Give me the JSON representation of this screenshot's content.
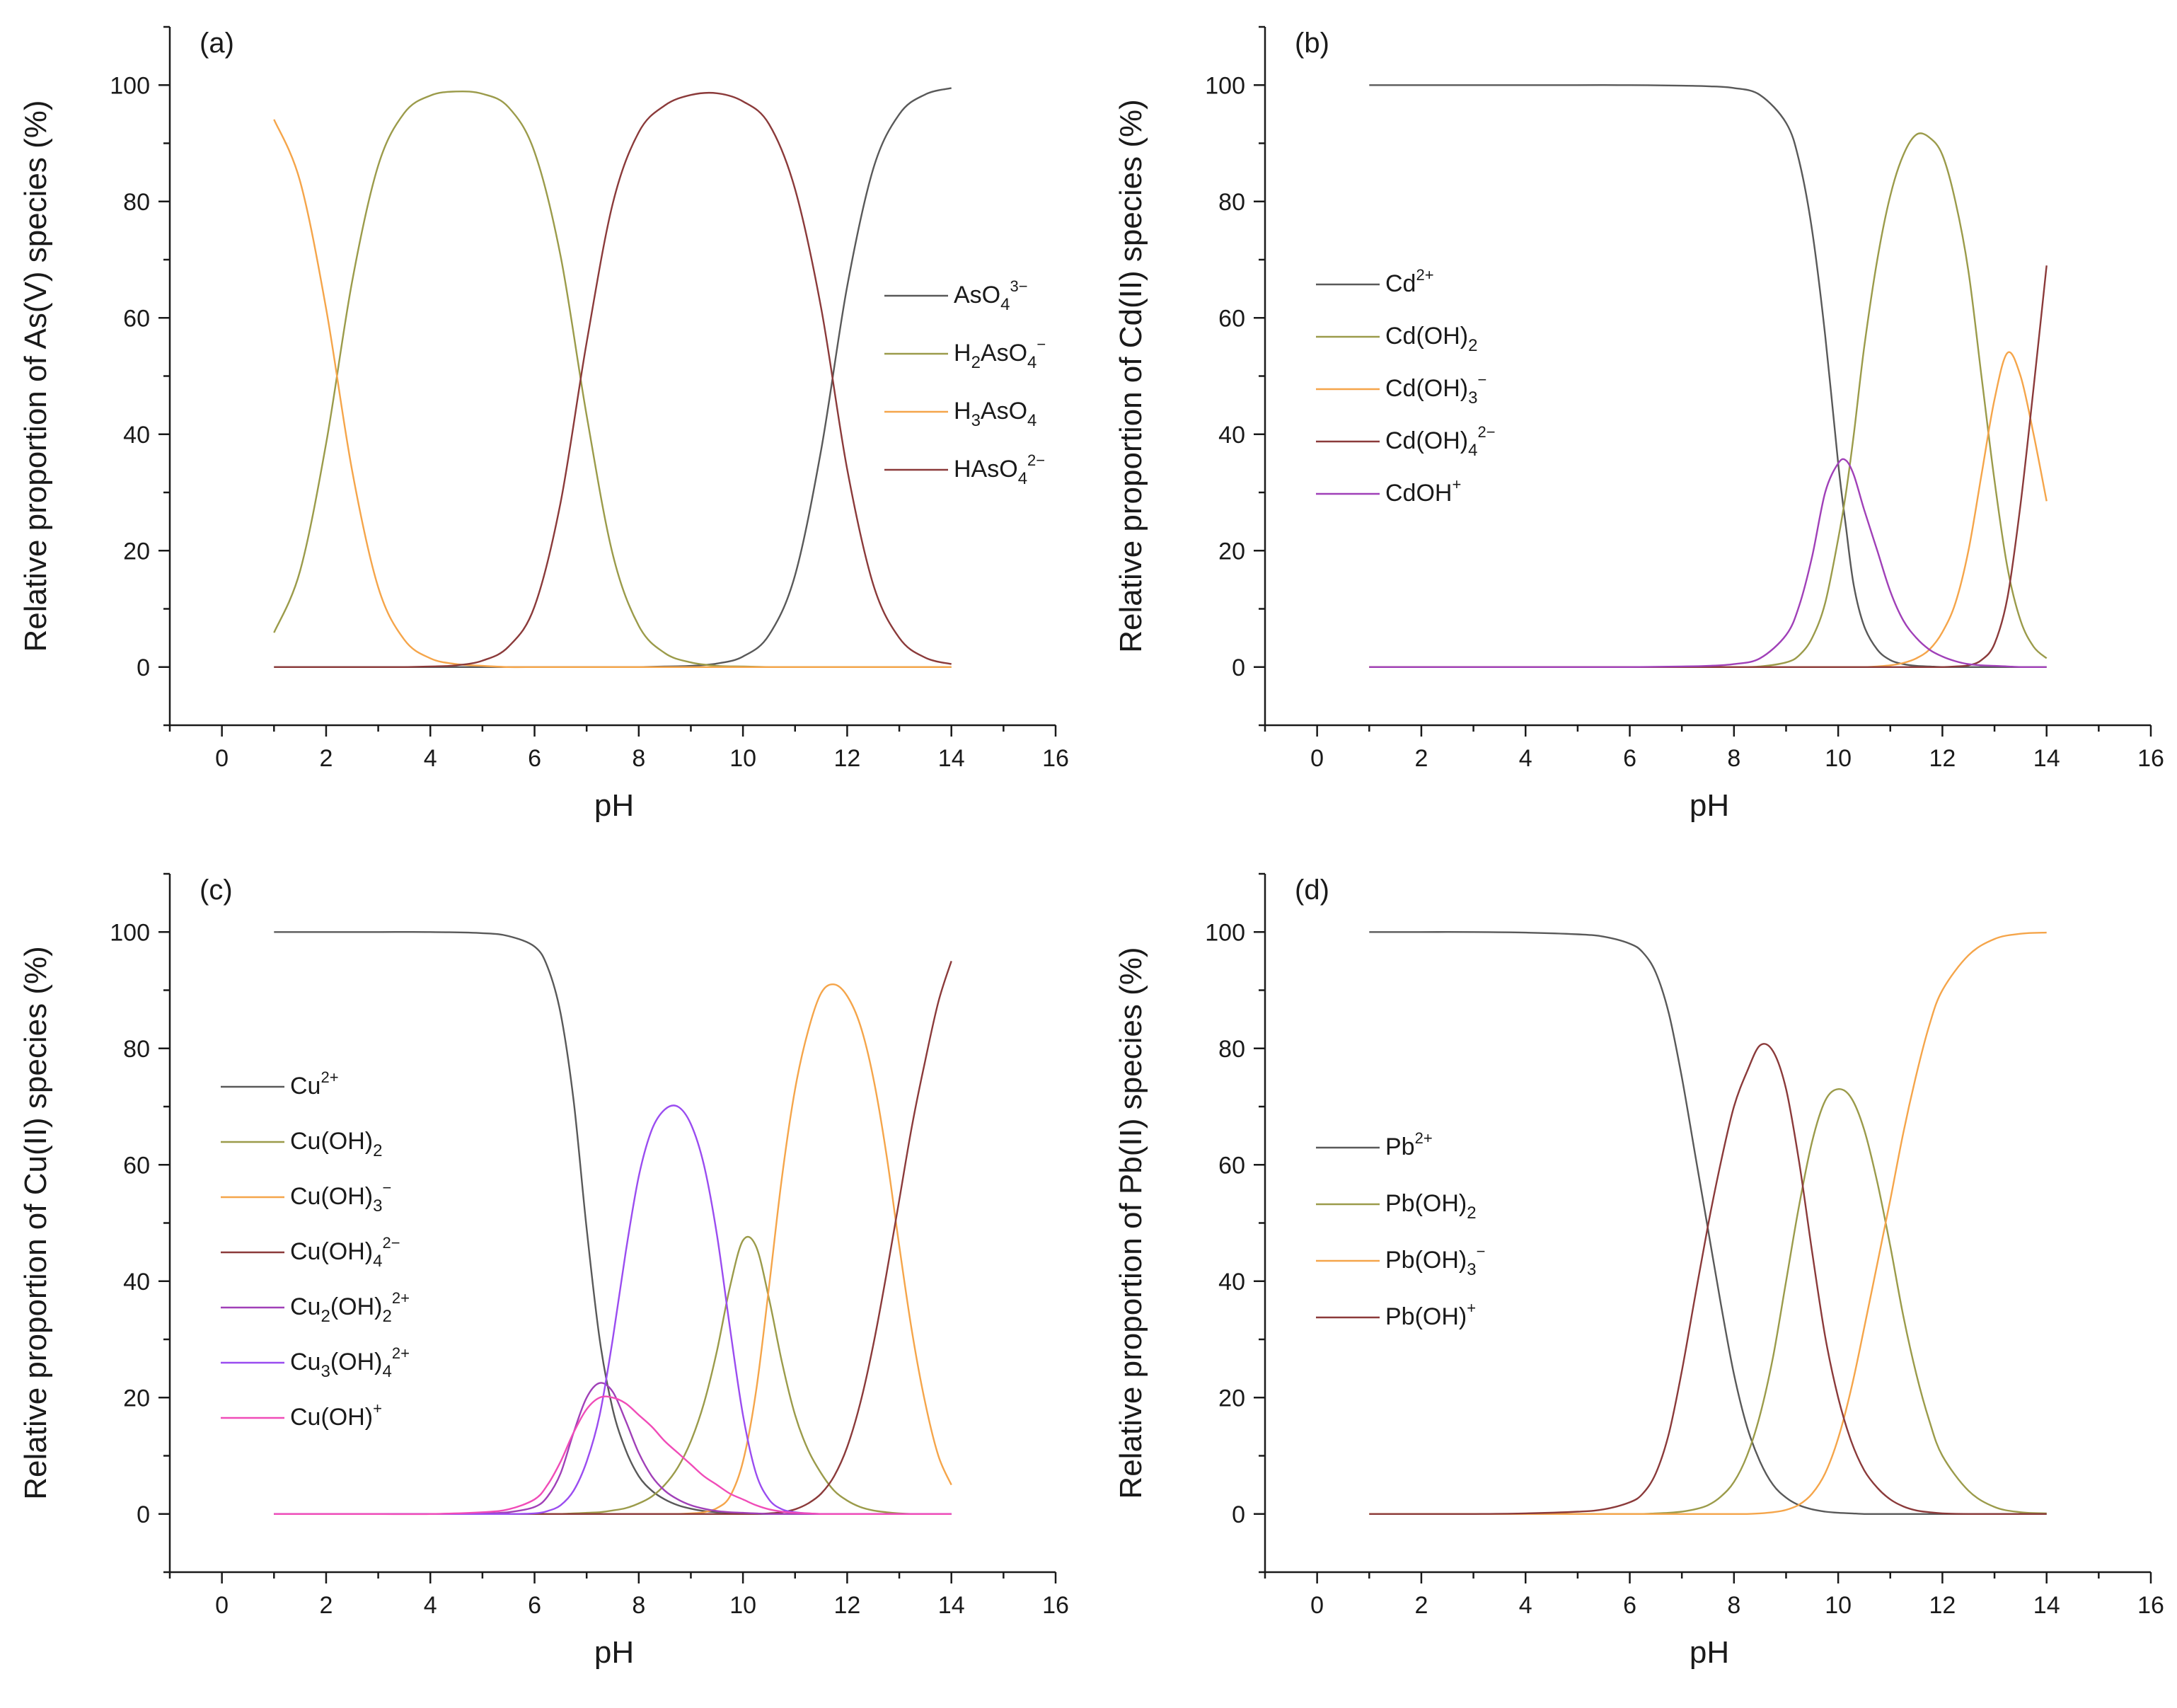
{
  "chart_data": [
    {
      "type": "line",
      "panel_label": "(a)",
      "xlabel": "pH",
      "ylabel": "Relative proportion of As(V) species (%)",
      "xlim": [
        -1,
        16
      ],
      "ylim": [
        -10,
        110
      ],
      "xticks": [
        0,
        2,
        4,
        6,
        8,
        10,
        12,
        14,
        16
      ],
      "yticks": [
        0,
        20,
        40,
        60,
        80,
        100
      ],
      "legend_position": "center-right",
      "x": [
        1.0,
        1.5,
        2.0,
        2.5,
        3.0,
        3.5,
        4.0,
        4.5,
        5.0,
        5.5,
        6.0,
        6.5,
        7.0,
        7.5,
        8.0,
        8.5,
        9.0,
        9.5,
        10.0,
        10.5,
        11.0,
        11.5,
        12.0,
        12.5,
        13.0,
        13.5,
        14.0
      ],
      "series": [
        {
          "name": "AsO43−",
          "base": "AsO",
          "sub": "4",
          "sup": "3−",
          "suffix": "",
          "color": "#595959",
          "values": [
            0,
            0,
            0,
            0,
            0,
            0,
            0,
            0,
            0,
            0,
            0,
            0,
            0,
            0,
            0,
            0.1,
            0.2,
            0.6,
            1.8,
            5.5,
            15.8,
            37.3,
            65.4,
            85.6,
            95.0,
            98.4,
            99.5
          ]
        },
        {
          "name": "H2AsO4−",
          "base": "H",
          "sub": "2",
          "mid": "AsO",
          "sub2": "4",
          "sup": "−",
          "suffix": "",
          "color": "#9b9b4a",
          "values": [
            5.9,
            16.5,
            38.4,
            66.3,
            86.2,
            95.2,
            98.2,
            98.9,
            98.5,
            96.2,
            88.5,
            70.6,
            43.2,
            19.4,
            7.1,
            2.4,
            0.8,
            0.2,
            0.1,
            0,
            0,
            0,
            0,
            0,
            0,
            0,
            0
          ]
        },
        {
          "name": "H3AsO4",
          "base": "H",
          "sub": "3",
          "mid": "AsO",
          "sub2": "4",
          "sup": "",
          "suffix": "",
          "color": "#f5a54a",
          "values": [
            94.1,
            83.5,
            61.6,
            33.7,
            13.7,
            4.7,
            1.5,
            0.5,
            0.2,
            0,
            0,
            0,
            0,
            0,
            0,
            0,
            0,
            0,
            0,
            0,
            0,
            0,
            0,
            0,
            0,
            0,
            0
          ]
        },
        {
          "name": "HAsO42−",
          "base": "HAsO",
          "sub": "4",
          "sup": "2−",
          "suffix": "",
          "color": "#8b3a3a",
          "values": [
            0,
            0,
            0,
            0,
            0,
            0,
            0.1,
            0.3,
            1.1,
            3.5,
            10.4,
            28.3,
            55.8,
            79.6,
            91.9,
            96.5,
            98.3,
            98.6,
            97.2,
            93.3,
            82.1,
            61.7,
            34.0,
            14.2,
            5.0,
            1.6,
            0.5
          ]
        }
      ]
    },
    {
      "type": "line",
      "panel_label": "(b)",
      "xlabel": "pH",
      "ylabel": "Relative proportion of Cd(II) species (%)",
      "xlim": [
        -1,
        16
      ],
      "ylim": [
        -10,
        110
      ],
      "xticks": [
        0,
        2,
        4,
        6,
        8,
        10,
        12,
        14,
        16
      ],
      "yticks": [
        0,
        20,
        40,
        60,
        80,
        100
      ],
      "legend_position": "center-left",
      "x": [
        1.0,
        2.0,
        3.0,
        4.0,
        5.0,
        6.0,
        7.0,
        7.5,
        8.0,
        8.5,
        9.0,
        9.25,
        9.5,
        9.75,
        10.0,
        10.15,
        10.3,
        10.5,
        10.75,
        11.0,
        11.25,
        11.5,
        11.75,
        12.0,
        12.25,
        12.5,
        12.75,
        13.0,
        13.25,
        13.5,
        13.75,
        14.0
      ],
      "series": [
        {
          "name": "Cd2+",
          "base": "Cd",
          "sup": "2+",
          "color": "#595959",
          "values": [
            100,
            100,
            100,
            100,
            100,
            100,
            99.9,
            99.8,
            99.5,
            98.3,
            93.5,
            87.0,
            75.0,
            57.0,
            35.0,
            24.0,
            14.0,
            7.0,
            3.0,
            1.2,
            0.5,
            0.2,
            0.1,
            0,
            0,
            0,
            0,
            0,
            0,
            0,
            0,
            0
          ]
        },
        {
          "name": "Cd(OH)2",
          "base": "Cd(OH)",
          "sub": "2",
          "color": "#9b9b4a",
          "values": [
            0,
            0,
            0,
            0,
            0,
            0,
            0,
            0,
            0,
            0.1,
            0.8,
            2.0,
            5.0,
            11.0,
            22.0,
            30.0,
            40.0,
            55.0,
            70.0,
            81.0,
            88.0,
            91.5,
            91.0,
            88.0,
            80.0,
            68.0,
            50.0,
            32.0,
            17.0,
            8.0,
            3.5,
            1.5
          ]
        },
        {
          "name": "Cd(OH)3−",
          "base": "Cd(OH)",
          "sub": "3",
          "sup": "−",
          "color": "#f5a54a",
          "values": [
            0,
            0,
            0,
            0,
            0,
            0,
            0,
            0,
            0,
            0,
            0,
            0,
            0,
            0,
            0,
            0,
            0,
            0,
            0.1,
            0.3,
            0.7,
            1.5,
            3.0,
            6.0,
            11.0,
            20.0,
            33.0,
            46.0,
            54.0,
            50.0,
            40.0,
            28.5
          ]
        },
        {
          "name": "Cd(OH)42−",
          "base": "Cd(OH)",
          "sub": "4",
          "sup": "2−",
          "color": "#8b3a3a",
          "values": [
            0,
            0,
            0,
            0,
            0,
            0,
            0,
            0,
            0,
            0,
            0,
            0,
            0,
            0,
            0,
            0,
            0,
            0,
            0,
            0,
            0,
            0,
            0,
            0,
            0.1,
            0.3,
            1.2,
            4.0,
            12.0,
            28.0,
            48.0,
            69.0
          ]
        },
        {
          "name": "CdOH+",
          "base": "CdOH",
          "sup": "+",
          "color": "#a040b8",
          "values": [
            0,
            0,
            0,
            0,
            0,
            0,
            0.1,
            0.2,
            0.5,
            1.5,
            5.5,
            10.5,
            19.0,
            30.0,
            35.0,
            35.5,
            33.0,
            27.0,
            20.0,
            13.0,
            8.0,
            5.0,
            3.0,
            1.8,
            1.0,
            0.5,
            0.3,
            0.2,
            0.1,
            0,
            0,
            0
          ]
        }
      ]
    },
    {
      "type": "line",
      "panel_label": "(c)",
      "xlabel": "pH",
      "ylabel": "Relative proportion of Cu(II) species (%)",
      "xlim": [
        -1,
        16
      ],
      "ylim": [
        -10,
        110
      ],
      "xticks": [
        0,
        2,
        4,
        6,
        8,
        10,
        12,
        14,
        16
      ],
      "yticks": [
        0,
        20,
        40,
        60,
        80,
        100
      ],
      "legend_position": "center-left",
      "x": [
        1.0,
        2.0,
        3.0,
        4.0,
        5.0,
        5.5,
        6.0,
        6.25,
        6.5,
        6.75,
        7.0,
        7.25,
        7.5,
        7.75,
        8.0,
        8.25,
        8.5,
        8.75,
        9.0,
        9.25,
        9.5,
        9.75,
        10.0,
        10.25,
        10.5,
        10.75,
        11.0,
        11.25,
        11.5,
        11.75,
        12.0,
        12.25,
        12.5,
        12.75,
        13.0,
        13.25,
        13.5,
        13.75,
        14.0
      ],
      "series": [
        {
          "name": "Cu2+",
          "base": "Cu",
          "sup": "2+",
          "color": "#595959",
          "values": [
            100,
            100,
            100,
            100,
            99.8,
            99.3,
            97.5,
            94.0,
            86.0,
            71.0,
            49.0,
            30.0,
            18.0,
            11.0,
            6.5,
            4.0,
            2.5,
            1.5,
            0.9,
            0.5,
            0.3,
            0.2,
            0.1,
            0,
            0,
            0,
            0,
            0,
            0,
            0,
            0,
            0,
            0,
            0,
            0,
            0,
            0,
            0,
            0
          ]
        },
        {
          "name": "Cu(OH)2",
          "base": "Cu(OH)",
          "sub": "2",
          "color": "#9b9b4a",
          "values": [
            0,
            0,
            0,
            0,
            0,
            0,
            0,
            0,
            0,
            0.1,
            0.2,
            0.3,
            0.6,
            1.0,
            1.8,
            3.0,
            5.0,
            8.0,
            12.5,
            19.0,
            28.0,
            39.0,
            47.0,
            46.0,
            37.0,
            26.0,
            17.0,
            11.0,
            7.0,
            4.0,
            2.3,
            1.2,
            0.6,
            0.3,
            0.1,
            0,
            0,
            0,
            0
          ]
        },
        {
          "name": "Cu(OH)3−",
          "base": "Cu(OH)",
          "sub": "3",
          "sup": "−",
          "color": "#f5a54a",
          "values": [
            0,
            0,
            0,
            0,
            0,
            0,
            0,
            0,
            0,
            0,
            0,
            0,
            0,
            0,
            0,
            0,
            0,
            0,
            0.1,
            0.3,
            1.0,
            3.0,
            9.0,
            21.0,
            39.0,
            58.0,
            73.0,
            83.0,
            89.5,
            91.0,
            89.0,
            84.0,
            75.0,
            62.0,
            46.0,
            31.0,
            19.0,
            10.0,
            5.0
          ]
        },
        {
          "name": "Cu(OH)42−",
          "base": "Cu(OH)",
          "sub": "4",
          "sup": "2−",
          "color": "#8b3a3a",
          "values": [
            0,
            0,
            0,
            0,
            0,
            0,
            0,
            0,
            0,
            0,
            0,
            0,
            0,
            0,
            0,
            0,
            0,
            0,
            0,
            0,
            0,
            0,
            0,
            0,
            0.1,
            0.3,
            0.8,
            1.8,
            3.5,
            6.5,
            11.5,
            19.0,
            29.0,
            41.0,
            54.0,
            67.0,
            78.0,
            88.0,
            95.0
          ]
        },
        {
          "name": "Cu2(OH)22+",
          "base": "Cu",
          "sub": "2",
          "mid": "(OH)",
          "sub2": "2",
          "sup": "2+",
          "color": "#a040b8",
          "values": [
            0,
            0,
            0,
            0,
            0.1,
            0.3,
            1.2,
            3.0,
            7.0,
            14.0,
            20.0,
            22.5,
            21.0,
            16.0,
            10.5,
            6.5,
            4.0,
            2.5,
            1.5,
            0.9,
            0.5,
            0.3,
            0.2,
            0.1,
            0,
            0,
            0,
            0,
            0,
            0,
            0,
            0,
            0,
            0,
            0,
            0,
            0,
            0,
            0
          ]
        },
        {
          "name": "Cu3(OH)42+",
          "base": "Cu",
          "sub": "3",
          "mid": "(OH)",
          "sub2": "4",
          "sup": "2+",
          "color": "#9a4cf0",
          "values": [
            0,
            0,
            0,
            0,
            0,
            0,
            0.1,
            0.5,
            1.5,
            4.0,
            9.0,
            17.0,
            30.0,
            45.0,
            58.0,
            66.0,
            69.5,
            70.0,
            67.0,
            60.0,
            48.0,
            32.0,
            17.0,
            7.0,
            2.5,
            0.8,
            0.3,
            0.1,
            0,
            0,
            0,
            0,
            0,
            0,
            0,
            0,
            0,
            0,
            0
          ]
        },
        {
          "name": "Cu(OH)+",
          "base": "Cu(OH)",
          "sup": "+",
          "color": "#f04cb8",
          "values": [
            0,
            0,
            0,
            0,
            0.3,
            0.8,
            2.5,
            5.0,
            9.0,
            14.0,
            18.0,
            20.0,
            20.0,
            19.0,
            17.0,
            15.0,
            12.5,
            10.5,
            8.5,
            6.5,
            5.0,
            3.5,
            2.5,
            1.5,
            0.8,
            0.4,
            0.2,
            0.1,
            0,
            0,
            0,
            0,
            0,
            0,
            0,
            0,
            0,
            0,
            0
          ]
        }
      ]
    },
    {
      "type": "line",
      "panel_label": "(d)",
      "xlabel": "pH",
      "ylabel": "Relative proportion of Pb(II) species (%)",
      "xlim": [
        -1,
        16
      ],
      "ylim": [
        -10,
        110
      ],
      "xticks": [
        0,
        2,
        4,
        6,
        8,
        10,
        12,
        14,
        16
      ],
      "yticks": [
        0,
        20,
        40,
        60,
        80,
        100
      ],
      "legend_position": "center-left",
      "x": [
        1.0,
        2.0,
        3.0,
        4.0,
        5.0,
        5.5,
        6.0,
        6.25,
        6.5,
        6.75,
        7.0,
        7.25,
        7.5,
        7.75,
        8.0,
        8.25,
        8.5,
        8.75,
        9.0,
        9.25,
        9.5,
        9.75,
        10.0,
        10.25,
        10.5,
        10.75,
        11.0,
        11.25,
        11.5,
        11.75,
        12.0,
        12.5,
        13.0,
        13.5,
        14.0
      ],
      "series": [
        {
          "name": "Pb2+",
          "base": "Pb",
          "sup": "2+",
          "color": "#595959",
          "values": [
            100,
            100,
            100,
            99.9,
            99.6,
            99.2,
            98.0,
            96.5,
            93.0,
            86.0,
            75.0,
            62.0,
            49.0,
            36.0,
            24.0,
            15.0,
            9.0,
            5.0,
            2.8,
            1.5,
            0.8,
            0.4,
            0.2,
            0.1,
            0,
            0,
            0,
            0,
            0,
            0,
            0,
            0,
            0,
            0,
            0
          ]
        },
        {
          "name": "Pb(OH)2",
          "base": "Pb(OH)",
          "sub": "2",
          "color": "#9b9b4a",
          "values": [
            0,
            0,
            0,
            0,
            0,
            0,
            0,
            0,
            0.1,
            0.2,
            0.4,
            0.8,
            1.5,
            3.0,
            5.5,
            10.0,
            17.0,
            27.0,
            40.0,
            53.0,
            64.0,
            71.0,
            73.0,
            71.5,
            66.0,
            57.0,
            46.0,
            34.0,
            24.0,
            16.0,
            10.0,
            4.0,
            1.2,
            0.3,
            0.1
          ]
        },
        {
          "name": "Pb(OH)3−",
          "base": "Pb(OH)",
          "sub": "3",
          "sup": "−",
          "color": "#f5a54a",
          "values": [
            0,
            0,
            0,
            0,
            0,
            0,
            0,
            0,
            0,
            0,
            0,
            0,
            0,
            0,
            0,
            0,
            0.1,
            0.3,
            0.7,
            1.6,
            3.5,
            7.0,
            13.0,
            21.5,
            32.0,
            43.0,
            54.0,
            65.5,
            75.5,
            84.0,
            90.0,
            96.0,
            98.8,
            99.7,
            99.9
          ]
        },
        {
          "name": "Pb(OH)+",
          "base": "Pb(OH)",
          "sup": "+",
          "color": "#8b3a3a",
          "values": [
            0,
            0,
            0,
            0.1,
            0.4,
            0.8,
            2.0,
            3.5,
            7.0,
            13.8,
            24.6,
            37.2,
            49.5,
            60.5,
            70.0,
            76.0,
            80.5,
            79.5,
            73.0,
            60.5,
            45.0,
            30.5,
            20.0,
            12.5,
            7.5,
            4.5,
            2.5,
            1.3,
            0.6,
            0.3,
            0.1,
            0,
            0,
            0,
            0
          ]
        }
      ]
    }
  ]
}
